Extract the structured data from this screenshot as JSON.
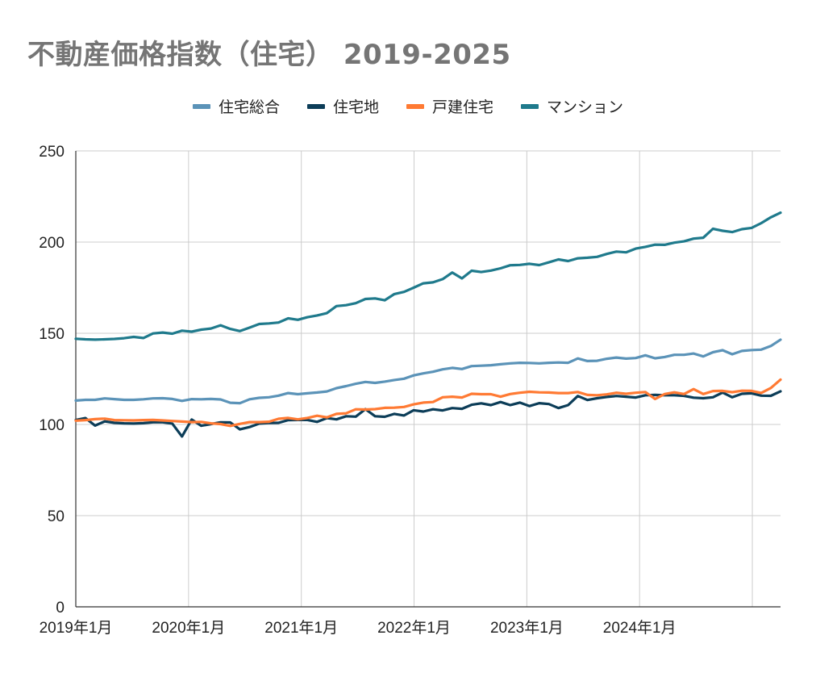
{
  "chart_data": {
    "type": "line",
    "title": "不動産価格指数（住宅） 2019-2025",
    "ylim": [
      0,
      250
    ],
    "yticks": [
      "0",
      "50",
      "100",
      "150",
      "200",
      "250"
    ],
    "xlim": [
      2019.0,
      2025.25
    ],
    "xticks": [
      "2019年1月",
      "2020年1月",
      "2021年1月",
      "2022年1月",
      "2023年1月",
      "2024年1月"
    ],
    "grid": true,
    "legend_position": "top",
    "start": "2019年1月",
    "series": [
      {
        "name": "住宅総合",
        "color": "#5b93b8",
        "values": [
          113.1,
          113.5,
          113.5,
          114.3,
          113.9,
          113.5,
          113.5,
          113.8,
          114.3,
          114.4,
          114.0,
          112.9,
          113.9,
          113.8,
          114.0,
          113.7,
          111.9,
          111.7,
          113.8,
          114.6,
          114.9,
          115.8,
          117.2,
          116.6,
          117.1,
          117.5,
          118.1,
          119.9,
          121.0,
          122.3,
          123.3,
          122.8,
          123.5,
          124.4,
          125.1,
          126.9,
          128.0,
          128.9,
          130.2,
          131.0,
          130.4,
          132.0,
          132.2,
          132.5,
          133.0,
          133.5,
          133.8,
          133.7,
          133.5,
          133.8,
          134.0,
          133.8,
          136.2,
          134.8,
          134.9,
          136.0,
          136.7,
          136.1,
          136.4,
          137.9,
          136.3,
          137.0,
          138.2,
          138.2,
          138.9,
          137.3,
          139.6,
          140.7,
          138.5,
          140.3,
          140.8,
          141.0,
          143.0,
          146.5
        ]
      },
      {
        "name": "住宅地",
        "color": "#0c3d58",
        "values": [
          102.5,
          103.5,
          99.4,
          101.7,
          100.9,
          100.6,
          100.5,
          100.7,
          101.2,
          101.2,
          100.5,
          93.4,
          102.7,
          99.3,
          100.2,
          101.2,
          101.1,
          97.3,
          98.6,
          100.5,
          100.8,
          100.9,
          102.4,
          102.5,
          102.5,
          101.4,
          103.5,
          102.8,
          104.5,
          104.3,
          108.4,
          104.5,
          104.2,
          105.8,
          104.9,
          107.8,
          107.1,
          108.3,
          107.7,
          109.0,
          108.6,
          110.8,
          111.6,
          110.6,
          112.3,
          110.6,
          112.0,
          110.1,
          111.7,
          111.2,
          109.0,
          110.6,
          115.6,
          113.4,
          114.4,
          115.1,
          115.6,
          115.2,
          114.8,
          116.0,
          116.2,
          116.0,
          116.0,
          115.7,
          114.7,
          114.4,
          114.9,
          117.5,
          114.9,
          116.8,
          117.1,
          115.8,
          115.7,
          118.2
        ]
      },
      {
        "name": "戸建住宅",
        "color": "#ff7a33",
        "values": [
          102.1,
          102.4,
          102.9,
          103.2,
          102.4,
          102.3,
          102.2,
          102.4,
          102.5,
          102.2,
          101.9,
          101.6,
          101.3,
          101.4,
          100.6,
          100.2,
          99.2,
          100.3,
          101.3,
          101.3,
          101.5,
          103.1,
          103.6,
          102.8,
          103.6,
          104.8,
          103.9,
          105.8,
          106.1,
          108.3,
          108.2,
          108.4,
          109.1,
          109.2,
          109.6,
          111.0,
          112.0,
          112.3,
          114.9,
          115.2,
          114.8,
          116.8,
          116.6,
          116.6,
          115.2,
          116.7,
          117.4,
          117.9,
          117.6,
          117.5,
          117.2,
          117.2,
          117.8,
          116.2,
          116.0,
          116.5,
          117.4,
          116.8,
          117.4,
          117.8,
          114.0,
          116.7,
          117.6,
          116.7,
          119.4,
          116.7,
          118.3,
          118.4,
          117.7,
          118.5,
          118.4,
          117.3,
          120.0,
          124.6
        ]
      },
      {
        "name": "マンション",
        "color": "#1f7a8c",
        "values": [
          147.0,
          146.7,
          146.5,
          146.7,
          146.9,
          147.3,
          148.0,
          147.4,
          149.9,
          150.4,
          149.8,
          151.4,
          150.9,
          152.0,
          152.6,
          154.4,
          152.4,
          151.2,
          153.1,
          155.1,
          155.4,
          155.9,
          158.2,
          157.4,
          158.8,
          159.8,
          161.0,
          164.9,
          165.4,
          166.5,
          168.8,
          169.1,
          168.1,
          171.5,
          172.7,
          175.0,
          177.4,
          177.9,
          179.7,
          183.3,
          180.1,
          184.3,
          183.6,
          184.4,
          185.6,
          187.3,
          187.5,
          188.1,
          187.4,
          188.9,
          190.5,
          189.6,
          191.1,
          191.4,
          191.9,
          193.5,
          194.8,
          194.4,
          196.4,
          197.4,
          198.6,
          198.5,
          199.7,
          200.4,
          201.9,
          202.4,
          207.3,
          206.2,
          205.5,
          207.1,
          207.8,
          210.4,
          213.6,
          216.1
        ]
      }
    ]
  }
}
